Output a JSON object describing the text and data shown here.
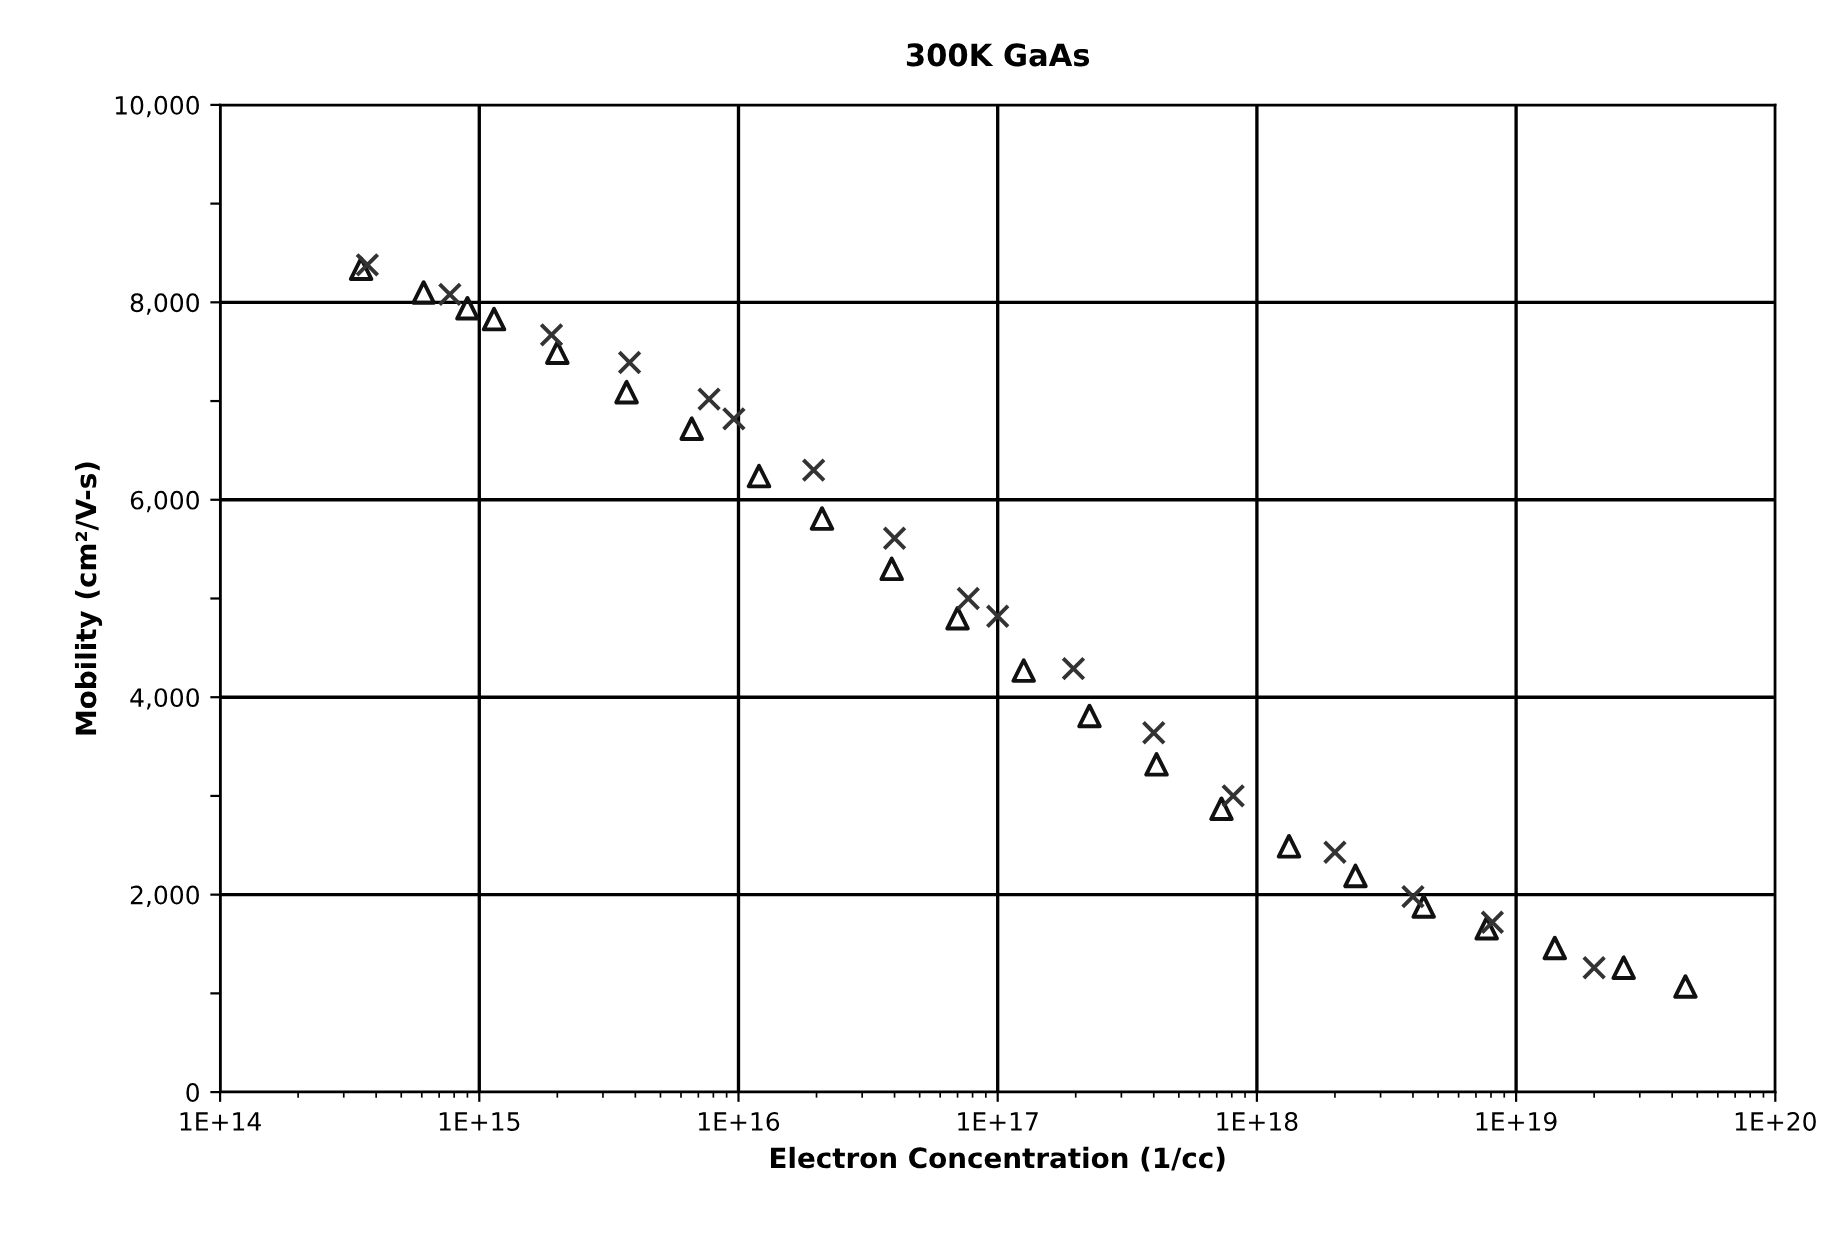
{
  "chart_data": {
    "type": "scatter",
    "title": "300K GaAs",
    "xlabel": "Electron Concentration (1/cc)",
    "ylabel": "Mobility (cm²/V-s)",
    "log": "x",
    "grid": true,
    "xlim": [
      100000000000000.0,
      1e+20
    ],
    "xticks": [
      {
        "value": 100000000000000.0,
        "label": "1E+14"
      },
      {
        "value": 1000000000000000.0,
        "label": "1E+15"
      },
      {
        "value": 1e+16,
        "label": "1E+16"
      },
      {
        "value": 1e+17,
        "label": "1E+17"
      },
      {
        "value": 1e+18,
        "label": "1E+18"
      },
      {
        "value": 1e+19,
        "label": "1E+19"
      },
      {
        "value": 1e+20,
        "label": "1E+20"
      }
    ],
    "ylim": [
      0,
      10000
    ],
    "yticks": [
      {
        "value": 0,
        "label": "0"
      },
      {
        "value": 1000,
        "label": null
      },
      {
        "value": 2000,
        "label": "2,000"
      },
      {
        "value": 3000,
        "label": null
      },
      {
        "value": 4000,
        "label": "4,000"
      },
      {
        "value": 5000,
        "label": null
      },
      {
        "value": 6000,
        "label": "6,000"
      },
      {
        "value": 7000,
        "label": null
      },
      {
        "value": 8000,
        "label": "8,000"
      },
      {
        "value": 9000,
        "label": null
      },
      {
        "value": 10000,
        "label": "10,000"
      }
    ],
    "series": [
      {
        "color": "#111111",
        "marker": "triangle",
        "x": [
          350000000000000.0,
          610000000000000.0,
          900000000000000.0,
          1140000000000000.0,
          2000000000000000.0,
          3700000000000000.0,
          6600000000000000.0,
          1.2e+16,
          2.1e+16,
          3.9e+16,
          7e+16,
          1.26e+17,
          2.26e+17,
          4.1e+17,
          7.3e+17,
          1.33e+18,
          2.4e+18,
          4.4e+18,
          7.7e+18,
          1.41e+19,
          2.6e+19,
          4.5e+19
        ],
        "values": [
          8340,
          8100,
          7940,
          7830,
          7490,
          7090,
          6720,
          6240,
          5810,
          5300,
          4800,
          4270,
          3810,
          3320,
          2870,
          2490,
          2190,
          1880,
          1660,
          1460,
          1260,
          1070
        ]
      },
      {
        "color": "#333333",
        "marker": "cross",
        "x": [
          370000000000000.0,
          770000000000000.0,
          1900000000000000.0,
          3800000000000000.0,
          7700000000000000.0,
          9600000000000000.0,
          1.95e+16,
          4e+16,
          7.7e+16,
          1e+17,
          1.96e+17,
          4e+17,
          8.1e+17,
          2e+18,
          4e+18,
          8.1e+18,
          2e+19
        ],
        "values": [
          8380,
          8080,
          7670,
          7390,
          7020,
          6820,
          6300,
          5610,
          5000,
          4820,
          4290,
          3640,
          3000,
          2430,
          1980,
          1720,
          1260
        ]
      }
    ]
  }
}
